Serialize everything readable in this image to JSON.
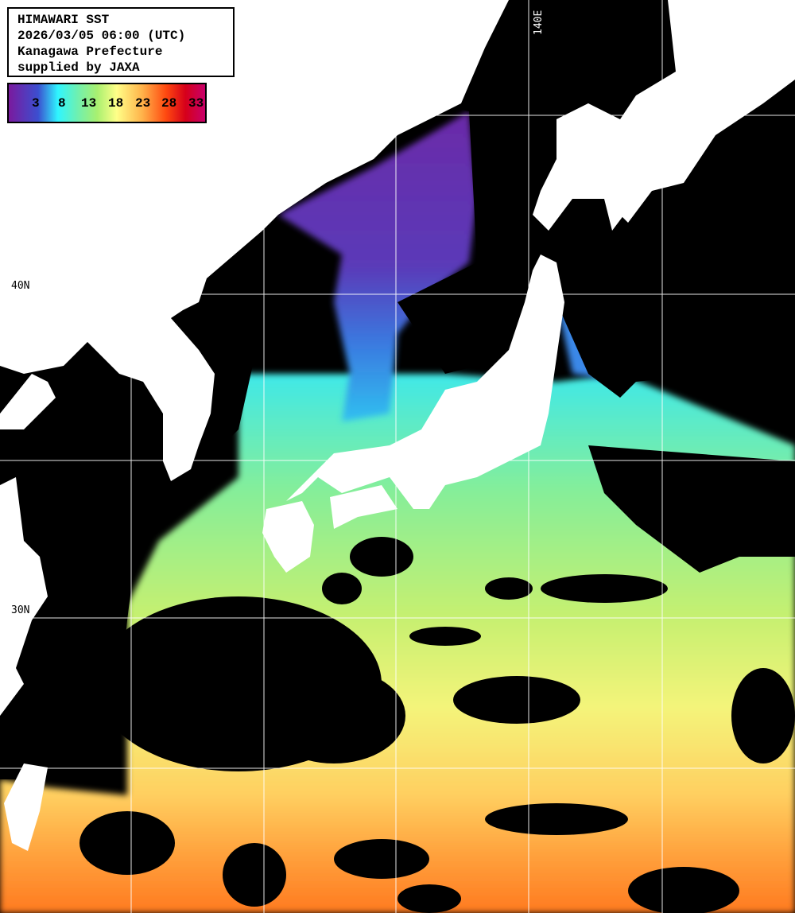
{
  "header": {
    "title": "HIMAWARI SST",
    "datetime": "2026/03/05 06:00 (UTC)",
    "region": "Kanagawa Prefecture",
    "credit": "supplied by JAXA"
  },
  "colorbar": {
    "unit_hint": "sea surface temperature",
    "ticks": [
      "3",
      "8",
      "13",
      "18",
      "23",
      "28",
      "33"
    ],
    "colors": [
      "#7a1a9e",
      "#3b4fd0",
      "#2ff5ff",
      "#6ff0b0",
      "#a8f070",
      "#ffff88",
      "#ffb24a",
      "#ff4a10",
      "#d6001a",
      "#c8006a"
    ]
  },
  "grid": {
    "lat_labels": [
      "40N",
      "30N"
    ],
    "lon_labels": [
      "140E"
    ]
  },
  "colors": {
    "land": "#ffffff",
    "cloud_or_nodata": "#000000",
    "grid": "#ffffff"
  }
}
